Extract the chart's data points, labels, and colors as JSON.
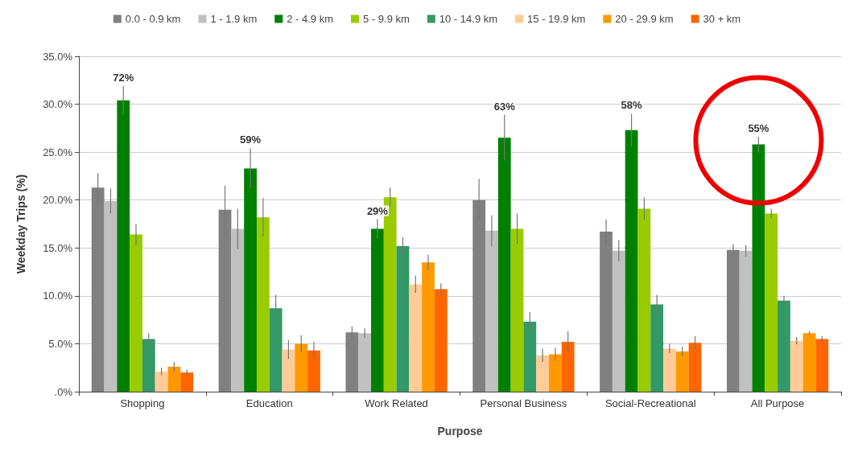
{
  "chart_data": {
    "type": "bar",
    "xlabel": "Purpose",
    "ylabel": "Weekday Trips (%)",
    "categories": [
      "Shopping",
      "Education",
      "Work Related",
      "Personal Business",
      "Social-Recreational",
      "All Purpose"
    ],
    "series": [
      {
        "name": "0.0 - 0.9 km",
        "color": "#808080",
        "values": [
          21.3,
          19.0,
          6.2,
          20.0,
          16.7,
          14.8
        ],
        "errors": [
          1.5,
          2.5,
          0.6,
          2.2,
          1.3,
          0.6
        ]
      },
      {
        "name": "1 - 1.9 km",
        "color": "#c0c0c0",
        "values": [
          19.9,
          17.0,
          6.1,
          16.8,
          14.7,
          14.7
        ],
        "errors": [
          1.3,
          2.1,
          0.5,
          1.6,
          1.1,
          0.6
        ]
      },
      {
        "name": "2 - 4.9 km",
        "color": "#008000",
        "values": [
          30.4,
          23.3,
          17.0,
          26.5,
          27.3,
          25.8
        ],
        "errors": [
          1.5,
          2.1,
          1.0,
          2.4,
          1.7,
          0.8
        ]
      },
      {
        "name": "5 - 9.9 km",
        "color": "#99cc00",
        "values": [
          16.4,
          18.2,
          20.3,
          17.0,
          19.1,
          18.6
        ],
        "errors": [
          1.1,
          2.0,
          1.0,
          1.6,
          1.2,
          0.5
        ]
      },
      {
        "name": "10 - 14.9 km",
        "color": "#339966",
        "values": [
          5.5,
          8.7,
          15.2,
          7.3,
          9.1,
          9.5
        ],
        "errors": [
          0.6,
          1.4,
          0.9,
          1.0,
          1.0,
          0.5
        ]
      },
      {
        "name": "15 - 19.9 km",
        "color": "#ffcc99",
        "values": [
          2.1,
          4.4,
          11.2,
          3.8,
          4.5,
          5.3
        ],
        "errors": [
          0.4,
          1.0,
          0.9,
          0.7,
          0.5,
          0.4
        ]
      },
      {
        "name": "20 - 29.9 km",
        "color": "#ff9900",
        "values": [
          2.6,
          5.0,
          13.5,
          3.9,
          4.2,
          6.1
        ],
        "errors": [
          0.5,
          0.9,
          0.8,
          0.7,
          0.5,
          0.2
        ]
      },
      {
        "name": "30 + km",
        "color": "#ff6600",
        "values": [
          2.0,
          4.3,
          10.7,
          5.2,
          5.1,
          5.5
        ],
        "errors": [
          0.3,
          0.9,
          0.6,
          1.1,
          0.7,
          0.3
        ]
      }
    ],
    "annotations": [
      "72%",
      "59%",
      "29%",
      "63%",
      "58%",
      "55%"
    ],
    "ylim": [
      0,
      35
    ],
    "yticks": [
      {
        "value": 0,
        "label": ".0%"
      },
      {
        "value": 5,
        "label": "5.0%"
      },
      {
        "value": 10,
        "label": "10.0%"
      },
      {
        "value": 15,
        "label": "15.0%"
      },
      {
        "value": 20,
        "label": "20.0%"
      },
      {
        "value": 25,
        "label": "25.0%"
      },
      {
        "value": 30,
        "label": "30.0%"
      },
      {
        "value": 35,
        "label": "35.0%"
      }
    ],
    "grid": "y",
    "legend": "top"
  }
}
